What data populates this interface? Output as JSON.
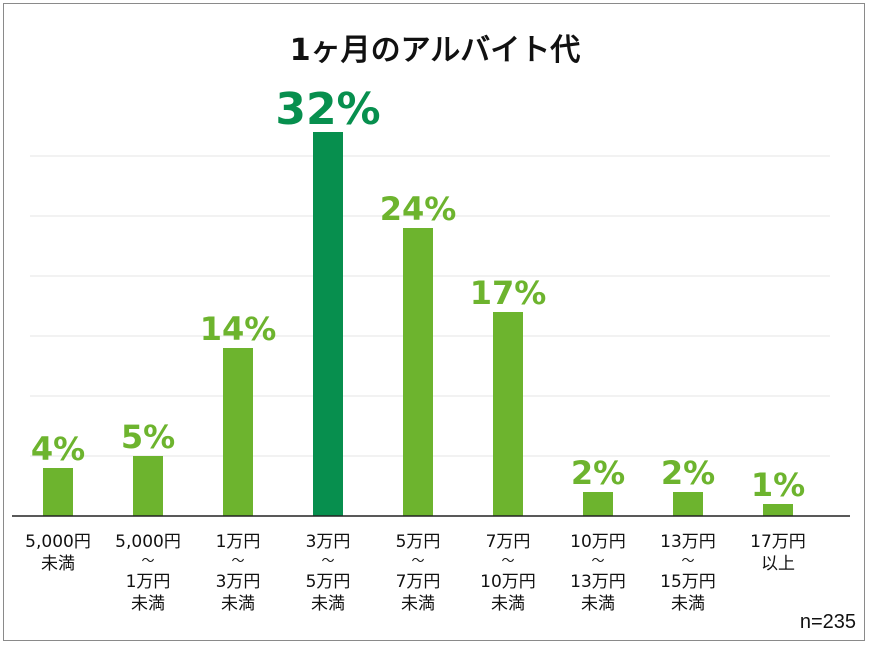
{
  "chart_data": {
    "type": "bar",
    "title": "1ヶ月のアルバイト代",
    "categories": [
      [
        "5,000円",
        "未満"
      ],
      [
        "5,000円",
        "～",
        "1万円",
        "未満"
      ],
      [
        "1万円",
        "～",
        "3万円",
        "未満"
      ],
      [
        "3万円",
        "～",
        "5万円",
        "未満"
      ],
      [
        "5万円",
        "～",
        "7万円",
        "未満"
      ],
      [
        "7万円",
        "～",
        "10万円",
        "未満"
      ],
      [
        "10万円",
        "～",
        "13万円",
        "未満"
      ],
      [
        "13万円",
        "～",
        "15万円",
        "未満"
      ],
      [
        "17万円",
        "以上"
      ]
    ],
    "values": [
      4,
      5,
      14,
      32,
      24,
      17,
      2,
      2,
      1
    ],
    "value_labels": [
      "4%",
      "5%",
      "14%",
      "32%",
      "24%",
      "17%",
      "2%",
      "2%",
      "1%"
    ],
    "unit": "%",
    "ylim": [
      0,
      40
    ],
    "grid": true,
    "highlight_index": 3,
    "colors": {
      "bar": "#6db42e",
      "highlight": "#078f4e",
      "label": "#6db42e",
      "highlight_label": "#078f4e",
      "grid": "#e4e4e4"
    }
  },
  "note": "n=235"
}
